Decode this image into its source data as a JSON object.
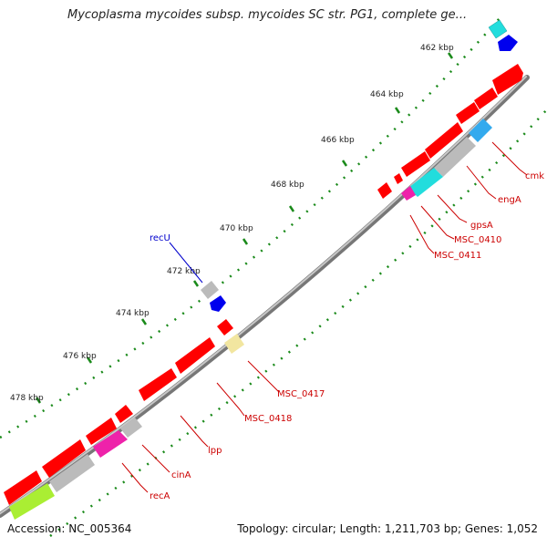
{
  "title": "Mycoplasma mycoides subsp. mycoides SC str. PG1, complete ge...",
  "footer": {
    "accession": "Accession: NC_005364",
    "summary": "Topology: circular; Length: 1,211,703 bp; Genes: 1,052"
  },
  "ticks": [
    "462 kbp",
    "464 kbp",
    "466 kbp",
    "468 kbp",
    "470 kbp",
    "472 kbp",
    "474 kbp",
    "476 kbp",
    "478 kbp"
  ],
  "colors": {
    "backbone": "#8a8a8a",
    "tick_dots": "#1a8a1a",
    "label_red": "#cc0000",
    "label_blue": "#0000cc",
    "cds": "#ff0000",
    "cyan": "#22dddd",
    "blue": "#0000ee",
    "gray": "#bbbbbb",
    "magenta": "#ee22aa",
    "lightblue": "#33aaee",
    "yellow": "#f2e6a0",
    "lime": "#aaee33"
  },
  "labels": {
    "recU": "recU",
    "cmk": "cmk",
    "engA": "engA",
    "gpsA": "gpsA",
    "MSC_0410": "MSC_0410",
    "MSC_0411": "MSC_0411",
    "MSC_0417": "MSC_0417",
    "MSC_0418": "MSC_0418",
    "lpp": "lpp",
    "cinA": "cinA",
    "recA": "recA"
  }
}
